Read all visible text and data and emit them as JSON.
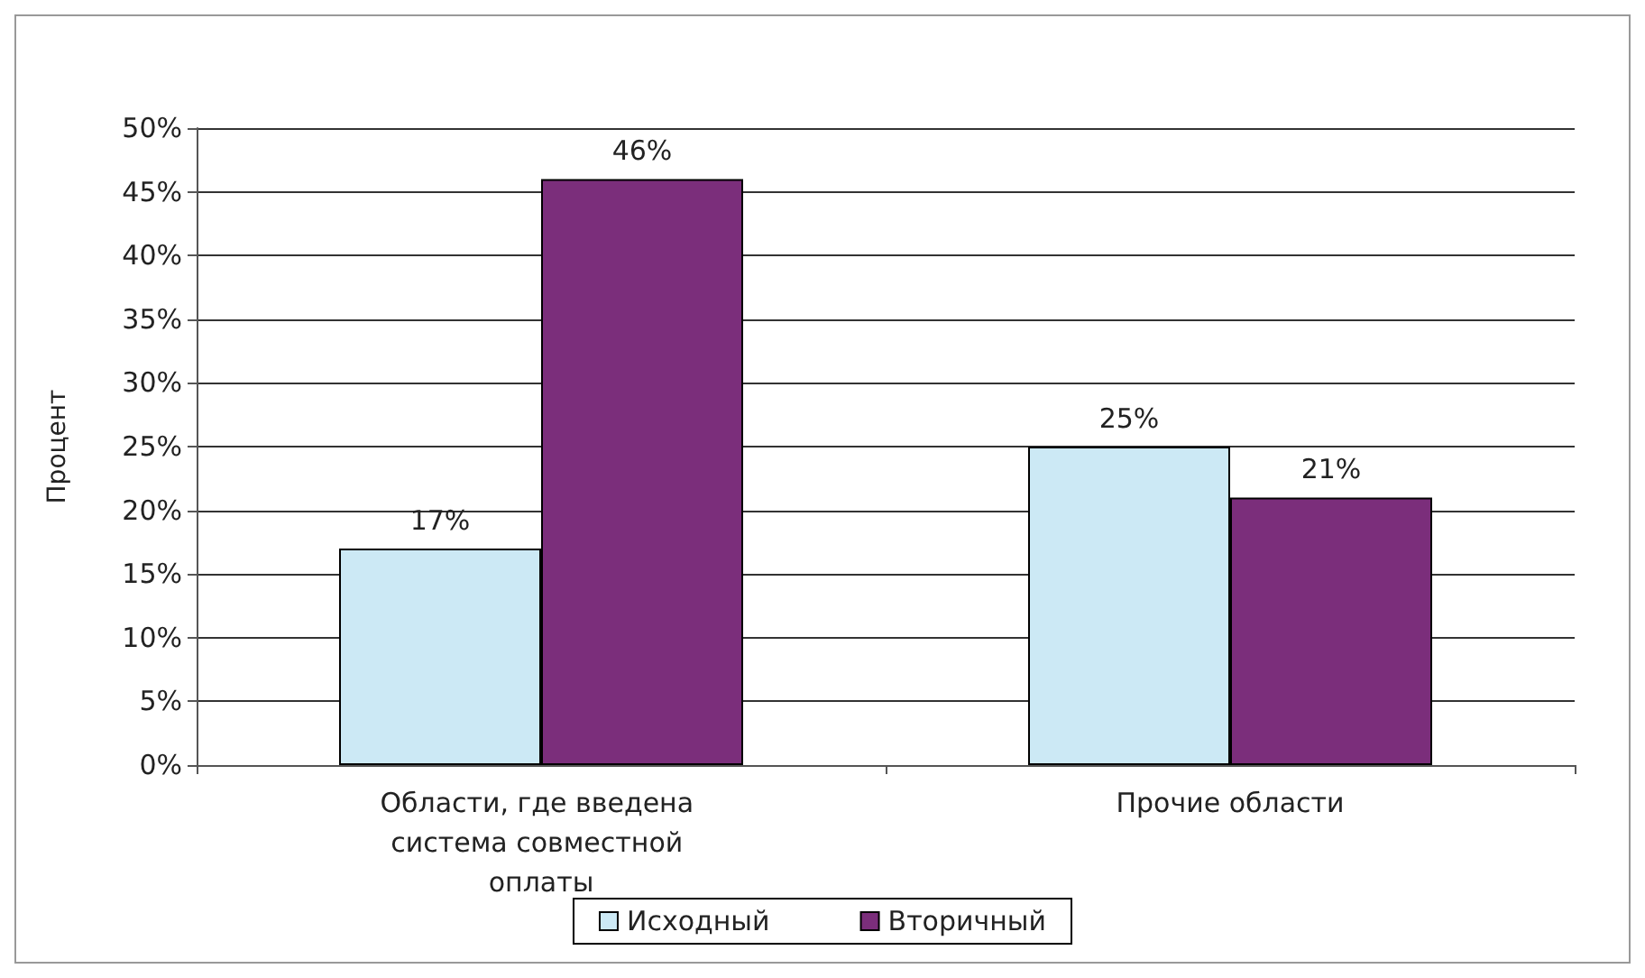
{
  "chart_data": {
    "type": "bar",
    "ylabel": "Процент",
    "categories": [
      "Области, где введена система совместной оплаты",
      "Прочие области"
    ],
    "series": [
      {
        "name": "Исходный",
        "color": "#cce9f5",
        "values": [
          17,
          25
        ],
        "value_labels": [
          "17%",
          "25%"
        ]
      },
      {
        "name": "Вторичный",
        "color": "#7b2e7b",
        "values": [
          46,
          21
        ],
        "value_labels": [
          "46%",
          "21%"
        ]
      }
    ],
    "ylim": [
      0,
      50
    ],
    "yticks": [
      {
        "value": 0,
        "label": "0%"
      },
      {
        "value": 5,
        "label": "5%"
      },
      {
        "value": 10,
        "label": "10%"
      },
      {
        "value": 15,
        "label": "15%"
      },
      {
        "value": 20,
        "label": "20%"
      },
      {
        "value": 25,
        "label": "25%"
      },
      {
        "value": 30,
        "label": "30%"
      },
      {
        "value": 35,
        "label": "35%"
      },
      {
        "value": 40,
        "label": "40%"
      },
      {
        "value": 45,
        "label": "45%"
      },
      {
        "value": 50,
        "label": "50%"
      }
    ],
    "grid": "y",
    "legend": "bottom"
  }
}
